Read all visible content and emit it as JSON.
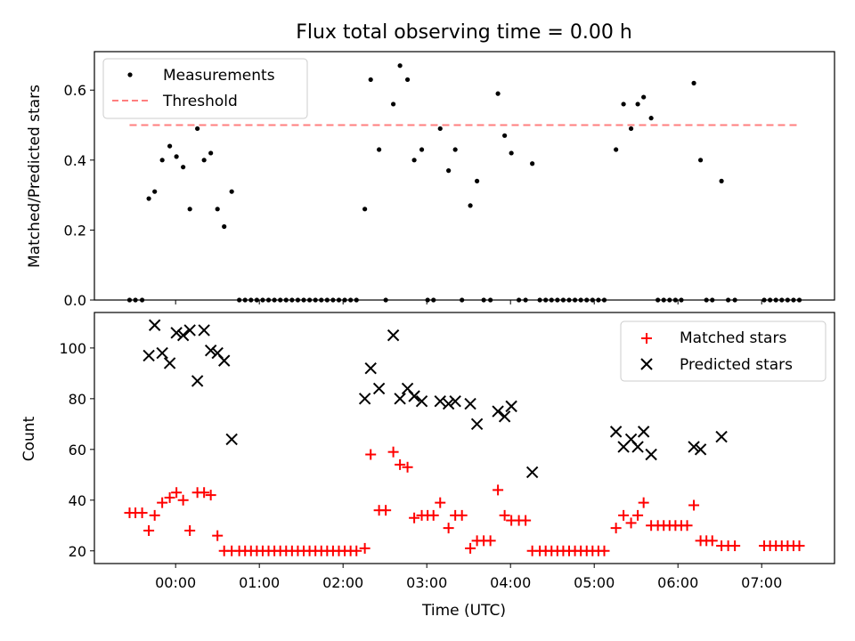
{
  "figure": {
    "title": "Flux total observing time = 0.00 h",
    "xlabel": "Time (UTC)",
    "xticks": [
      "00:00",
      "01:00",
      "02:00",
      "03:00",
      "04:00",
      "05:00",
      "06:00",
      "07:00"
    ]
  },
  "chart_data": [
    {
      "type": "scatter",
      "title": "Flux total observing time = 0.00 h",
      "xlabel": "Time (UTC)",
      "ylabel": "Matched/Predicted stars",
      "x_unit": "hours since 00:00 UTC",
      "xlim": [
        -0.97,
        7.87
      ],
      "ylim": [
        0,
        0.71
      ],
      "yticks": [
        "0.0",
        "0.2",
        "0.4",
        "0.6"
      ],
      "legend": "upper left",
      "series": [
        {
          "name": "Measurements",
          "color": "#000000",
          "marker": "dot",
          "points": [
            [
              -0.55,
              0
            ],
            [
              -0.48,
              0
            ],
            [
              -0.4,
              0
            ],
            [
              -0.32,
              0.29
            ],
            [
              -0.25,
              0.31
            ],
            [
              -0.16,
              0.4
            ],
            [
              -0.07,
              0.44
            ],
            [
              0.01,
              0.41
            ],
            [
              0.09,
              0.38
            ],
            [
              0.17,
              0.26
            ],
            [
              0.26,
              0.49
            ],
            [
              0.34,
              0.4
            ],
            [
              0.42,
              0.42
            ],
            [
              0.5,
              0.26
            ],
            [
              0.58,
              0.21
            ],
            [
              0.67,
              0.31
            ],
            [
              0.76,
              0
            ],
            [
              0.83,
              0
            ],
            [
              0.9,
              0
            ],
            [
              0.97,
              0
            ],
            [
              1.04,
              0
            ],
            [
              1.11,
              0
            ],
            [
              1.18,
              0
            ],
            [
              1.25,
              0
            ],
            [
              1.32,
              0
            ],
            [
              1.39,
              0
            ],
            [
              1.46,
              0
            ],
            [
              1.53,
              0
            ],
            [
              1.6,
              0
            ],
            [
              1.67,
              0
            ],
            [
              1.74,
              0
            ],
            [
              1.81,
              0
            ],
            [
              1.88,
              0
            ],
            [
              1.95,
              0
            ],
            [
              2.02,
              0
            ],
            [
              2.09,
              0
            ],
            [
              2.16,
              0
            ],
            [
              2.26,
              0.26
            ],
            [
              2.33,
              0.63
            ],
            [
              2.43,
              0.43
            ],
            [
              2.51,
              0
            ],
            [
              2.6,
              0.56
            ],
            [
              2.68,
              0.67
            ],
            [
              2.77,
              0.63
            ],
            [
              2.85,
              0.4
            ],
            [
              2.94,
              0.43
            ],
            [
              3.01,
              0
            ],
            [
              3.08,
              0
            ],
            [
              3.16,
              0.49
            ],
            [
              3.26,
              0.37
            ],
            [
              3.34,
              0.43
            ],
            [
              3.42,
              0
            ],
            [
              3.52,
              0.27
            ],
            [
              3.6,
              0.34
            ],
            [
              3.68,
              0
            ],
            [
              3.76,
              0
            ],
            [
              3.85,
              0.59
            ],
            [
              3.93,
              0.47
            ],
            [
              4.01,
              0.42
            ],
            [
              4.1,
              0
            ],
            [
              4.18,
              0
            ],
            [
              4.26,
              0.39
            ],
            [
              4.35,
              0
            ],
            [
              4.42,
              0
            ],
            [
              4.49,
              0
            ],
            [
              4.56,
              0
            ],
            [
              4.63,
              0
            ],
            [
              4.7,
              0
            ],
            [
              4.77,
              0
            ],
            [
              4.84,
              0
            ],
            [
              4.91,
              0
            ],
            [
              4.98,
              0
            ],
            [
              5.05,
              0
            ],
            [
              5.12,
              0
            ],
            [
              5.26,
              0.43
            ],
            [
              5.35,
              0.56
            ],
            [
              5.44,
              0.49
            ],
            [
              5.52,
              0.56
            ],
            [
              5.59,
              0.58
            ],
            [
              5.68,
              0.52
            ],
            [
              5.76,
              0
            ],
            [
              5.83,
              0
            ],
            [
              5.9,
              0
            ],
            [
              5.97,
              0
            ],
            [
              6.04,
              0
            ],
            [
              6.19,
              0.62
            ],
            [
              6.27,
              0.4
            ],
            [
              6.34,
              0
            ],
            [
              6.41,
              0
            ],
            [
              6.52,
              0.34
            ],
            [
              6.6,
              0
            ],
            [
              6.68,
              0
            ],
            [
              7.03,
              0
            ],
            [
              7.1,
              0
            ],
            [
              7.17,
              0
            ],
            [
              7.24,
              0
            ],
            [
              7.31,
              0
            ],
            [
              7.38,
              0
            ],
            [
              7.45,
              0
            ]
          ]
        },
        {
          "name": "Threshold",
          "color": "#ff7f7f",
          "style": "dashed",
          "points": [
            [
              -0.55,
              0.5
            ],
            [
              7.45,
              0.5
            ]
          ]
        }
      ]
    },
    {
      "type": "scatter",
      "xlabel": "Time (UTC)",
      "ylabel": "Count",
      "x_unit": "hours since 00:00 UTC",
      "xlim": [
        -0.97,
        7.87
      ],
      "ylim": [
        15,
        114
      ],
      "yticks": [
        "20",
        "40",
        "60",
        "80",
        "100"
      ],
      "legend": "upper right",
      "series": [
        {
          "name": "Matched stars",
          "color": "#ff0000",
          "marker": "plus",
          "points": [
            [
              -0.55,
              35
            ],
            [
              -0.48,
              35
            ],
            [
              -0.4,
              35
            ],
            [
              -0.32,
              28
            ],
            [
              -0.25,
              34
            ],
            [
              -0.16,
              39
            ],
            [
              -0.07,
              41
            ],
            [
              0.01,
              43
            ],
            [
              0.09,
              40
            ],
            [
              0.17,
              28
            ],
            [
              0.26,
              43
            ],
            [
              0.34,
              43
            ],
            [
              0.42,
              42
            ],
            [
              0.5,
              26
            ],
            [
              0.58,
              20
            ],
            [
              0.67,
              20
            ],
            [
              0.76,
              20
            ],
            [
              0.83,
              20
            ],
            [
              0.9,
              20
            ],
            [
              0.97,
              20
            ],
            [
              1.04,
              20
            ],
            [
              1.11,
              20
            ],
            [
              1.18,
              20
            ],
            [
              1.25,
              20
            ],
            [
              1.32,
              20
            ],
            [
              1.39,
              20
            ],
            [
              1.46,
              20
            ],
            [
              1.53,
              20
            ],
            [
              1.6,
              20
            ],
            [
              1.67,
              20
            ],
            [
              1.74,
              20
            ],
            [
              1.81,
              20
            ],
            [
              1.88,
              20
            ],
            [
              1.95,
              20
            ],
            [
              2.02,
              20
            ],
            [
              2.09,
              20
            ],
            [
              2.16,
              20
            ],
            [
              2.26,
              21
            ],
            [
              2.33,
              58
            ],
            [
              2.43,
              36
            ],
            [
              2.51,
              36
            ],
            [
              2.6,
              59
            ],
            [
              2.68,
              54
            ],
            [
              2.77,
              53
            ],
            [
              2.85,
              33
            ],
            [
              2.94,
              34
            ],
            [
              3.01,
              34
            ],
            [
              3.08,
              34
            ],
            [
              3.16,
              39
            ],
            [
              3.26,
              29
            ],
            [
              3.34,
              34
            ],
            [
              3.42,
              34
            ],
            [
              3.52,
              21
            ],
            [
              3.6,
              24
            ],
            [
              3.68,
              24
            ],
            [
              3.76,
              24
            ],
            [
              3.85,
              44
            ],
            [
              3.93,
              34
            ],
            [
              4.01,
              32
            ],
            [
              4.1,
              32
            ],
            [
              4.18,
              32
            ],
            [
              4.26,
              20
            ],
            [
              4.35,
              20
            ],
            [
              4.42,
              20
            ],
            [
              4.49,
              20
            ],
            [
              4.56,
              20
            ],
            [
              4.63,
              20
            ],
            [
              4.7,
              20
            ],
            [
              4.77,
              20
            ],
            [
              4.84,
              20
            ],
            [
              4.91,
              20
            ],
            [
              4.98,
              20
            ],
            [
              5.05,
              20
            ],
            [
              5.12,
              20
            ],
            [
              5.26,
              29
            ],
            [
              5.35,
              34
            ],
            [
              5.44,
              31
            ],
            [
              5.52,
              34
            ],
            [
              5.59,
              39
            ],
            [
              5.68,
              30
            ],
            [
              5.76,
              30
            ],
            [
              5.83,
              30
            ],
            [
              5.9,
              30
            ],
            [
              5.97,
              30
            ],
            [
              6.04,
              30
            ],
            [
              6.11,
              30
            ],
            [
              6.19,
              38
            ],
            [
              6.27,
              24
            ],
            [
              6.34,
              24
            ],
            [
              6.41,
              24
            ],
            [
              6.52,
              22
            ],
            [
              6.6,
              22
            ],
            [
              6.68,
              22
            ],
            [
              7.03,
              22
            ],
            [
              7.1,
              22
            ],
            [
              7.17,
              22
            ],
            [
              7.24,
              22
            ],
            [
              7.31,
              22
            ],
            [
              7.38,
              22
            ],
            [
              7.45,
              22
            ]
          ]
        },
        {
          "name": "Predicted stars",
          "color": "#000000",
          "marker": "x",
          "points": [
            [
              -0.32,
              97
            ],
            [
              -0.25,
              109
            ],
            [
              -0.16,
              98
            ],
            [
              -0.07,
              94
            ],
            [
              0.01,
              106
            ],
            [
              0.09,
              105
            ],
            [
              0.17,
              107
            ],
            [
              0.26,
              87
            ],
            [
              0.34,
              107
            ],
            [
              0.42,
              99
            ],
            [
              0.5,
              98
            ],
            [
              0.58,
              95
            ],
            [
              0.67,
              64
            ],
            [
              2.26,
              80
            ],
            [
              2.33,
              92
            ],
            [
              2.43,
              84
            ],
            [
              2.6,
              105
            ],
            [
              2.68,
              80
            ],
            [
              2.77,
              84
            ],
            [
              2.85,
              81
            ],
            [
              2.94,
              79
            ],
            [
              3.16,
              79
            ],
            [
              3.26,
              78
            ],
            [
              3.34,
              79
            ],
            [
              3.52,
              78
            ],
            [
              3.6,
              70
            ],
            [
              3.85,
              75
            ],
            [
              3.93,
              73
            ],
            [
              4.01,
              77
            ],
            [
              4.26,
              51
            ],
            [
              5.26,
              67
            ],
            [
              5.35,
              61
            ],
            [
              5.44,
              64
            ],
            [
              5.52,
              61
            ],
            [
              5.59,
              67
            ],
            [
              5.68,
              58
            ],
            [
              6.19,
              61
            ],
            [
              6.27,
              60
            ],
            [
              6.52,
              65
            ]
          ]
        }
      ]
    }
  ]
}
